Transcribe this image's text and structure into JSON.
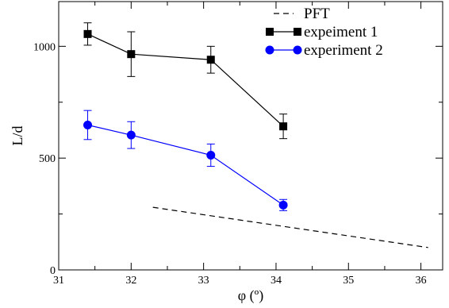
{
  "chart_data": {
    "type": "line",
    "title": "",
    "xlabel": "φ  (º)",
    "ylabel": "L/d",
    "xlim": [
      31,
      36.3
    ],
    "ylim": [
      0,
      1200
    ],
    "x_ticks": [
      31,
      32,
      33,
      34,
      35,
      36
    ],
    "y_ticks": [
      0,
      500,
      1000
    ],
    "x_tick_labels": [
      "31",
      "32",
      "33",
      "34",
      "35",
      "36"
    ],
    "y_tick_labels": [
      "0",
      "500",
      "1000"
    ],
    "grid": false,
    "legend_position": "top-right",
    "series": [
      {
        "name": "PFT",
        "color": "#000000",
        "style": "dashed",
        "marker": "none",
        "x": [
          32.3,
          36.1
        ],
        "y": [
          280,
          100
        ]
      },
      {
        "name": "expeiment 1",
        "color": "#000000",
        "style": "solid",
        "marker": "square",
        "x": [
          31.4,
          32.0,
          33.1,
          34.1
        ],
        "y": [
          1055,
          965,
          940,
          642
        ],
        "err": [
          50,
          100,
          60,
          55
        ]
      },
      {
        "name": "experiment 2",
        "color": "#0000ff",
        "style": "solid",
        "marker": "circle",
        "x": [
          31.4,
          32.0,
          33.1,
          34.1
        ],
        "y": [
          648,
          603,
          513,
          290
        ],
        "err": [
          65,
          60,
          50,
          25
        ]
      }
    ]
  }
}
